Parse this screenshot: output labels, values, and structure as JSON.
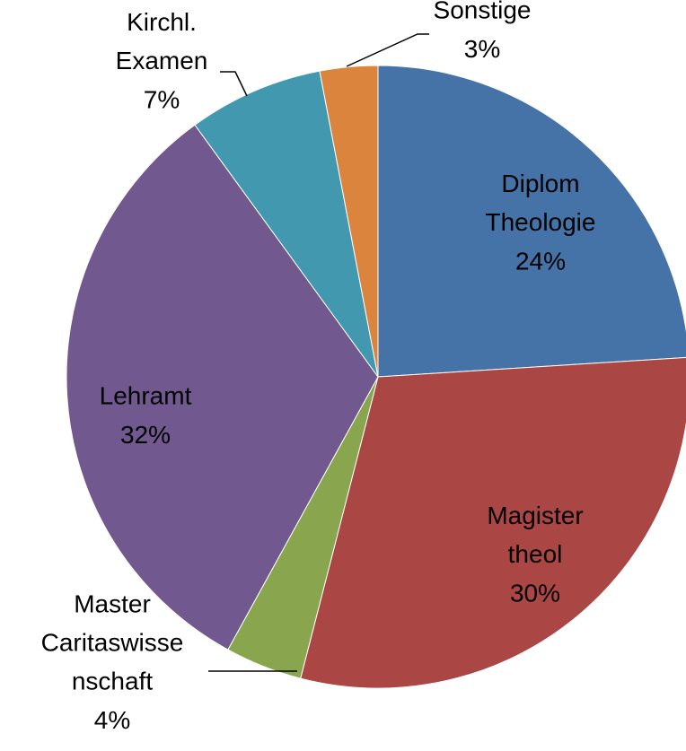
{
  "chart_data": {
    "type": "pie",
    "categories": [
      "Diplom Theologie",
      "Magister theol",
      "Master Caritaswissenschaft",
      "Lehramt",
      "Kirchl. Examen",
      "Sonstige"
    ],
    "values": [
      24,
      30,
      4,
      32,
      7,
      3
    ],
    "value_labels": [
      "24%",
      "30%",
      "4%",
      "32%",
      "7%",
      "3%"
    ],
    "colors": [
      "#4572A7",
      "#AA4643",
      "#89A54E",
      "#71588F",
      "#4198AF",
      "#DB843D"
    ]
  }
}
